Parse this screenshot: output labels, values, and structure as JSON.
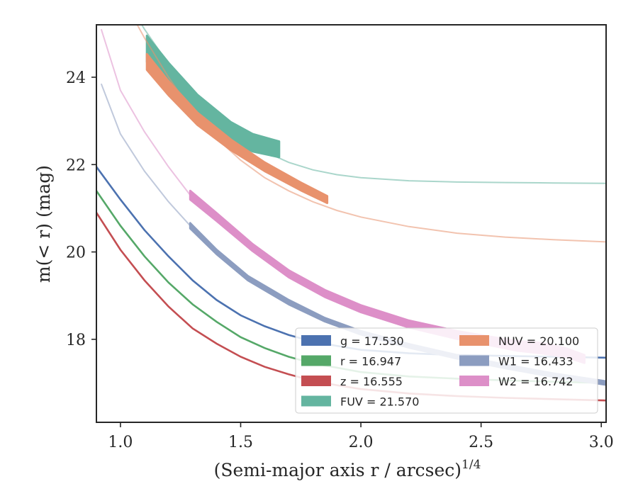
{
  "chart_data": {
    "type": "line",
    "xlabel": "(Semi-major axis r / arcsec)",
    "xlabel_sup": "1/4",
    "ylabel": "m(< r) (mag)",
    "xlim": [
      0.9,
      3.02
    ],
    "ylim": [
      25.2,
      16.1
    ],
    "y_inverted": true,
    "grid": false,
    "legend_position": "lower-right",
    "x_ticks": [
      1.0,
      1.5,
      2.0,
      2.5,
      3.0
    ],
    "x_tick_labels": [
      "1.0",
      "1.5",
      "2.0",
      "2.5",
      "3.0"
    ],
    "y_ticks": [
      18,
      20,
      22,
      24
    ],
    "y_tick_labels": [
      "18",
      "20",
      "22",
      "24"
    ],
    "series": [
      {
        "name": "g",
        "value_label": "g = 17.530",
        "color": "#4c72b0",
        "band": false,
        "x": [
          0.9,
          1.0,
          1.1,
          1.2,
          1.3,
          1.4,
          1.5,
          1.6,
          1.7,
          1.8,
          1.9,
          2.0,
          2.2,
          2.4,
          2.6,
          2.8,
          3.02
        ],
        "y": [
          21.95,
          21.2,
          20.5,
          19.9,
          19.35,
          18.9,
          18.55,
          18.3,
          18.1,
          17.95,
          17.85,
          17.76,
          17.68,
          17.64,
          17.62,
          17.6,
          17.58
        ]
      },
      {
        "name": "r",
        "value_label": "r = 16.947",
        "color": "#55a868",
        "band": false,
        "x": [
          0.9,
          1.0,
          1.1,
          1.2,
          1.3,
          1.4,
          1.5,
          1.6,
          1.7,
          1.8,
          1.9,
          2.0,
          2.2,
          2.4,
          2.6,
          2.8,
          3.02
        ],
        "y": [
          21.4,
          20.6,
          19.9,
          19.3,
          18.8,
          18.4,
          18.05,
          17.8,
          17.6,
          17.45,
          17.35,
          17.25,
          17.15,
          17.1,
          17.06,
          17.03,
          17.0
        ]
      },
      {
        "name": "z",
        "value_label": "z = 16.555",
        "color": "#c44e52",
        "band": false,
        "x": [
          0.9,
          1.0,
          1.1,
          1.2,
          1.3,
          1.4,
          1.5,
          1.6,
          1.7,
          1.8,
          1.9,
          2.0,
          2.2,
          2.4,
          2.6,
          2.8,
          3.02
        ],
        "y": [
          20.9,
          20.05,
          19.35,
          18.75,
          18.25,
          17.9,
          17.6,
          17.37,
          17.2,
          17.05,
          16.95,
          16.86,
          16.76,
          16.7,
          16.66,
          16.63,
          16.6
        ]
      },
      {
        "name": "FUV",
        "value_label": "FUV = 21.570",
        "color": "#64b5a0",
        "band": true,
        "x": [
          1.11,
          1.2,
          1.32,
          1.46,
          1.55,
          1.66
        ],
        "y": [
          24.65,
          24.05,
          23.35,
          22.75,
          22.5,
          22.35
        ],
        "err": [
          0.3,
          0.28,
          0.25,
          0.22,
          0.2,
          0.18
        ],
        "model_x": [
          0.9,
          1.0,
          1.1,
          1.2,
          1.3,
          1.4,
          1.5,
          1.6,
          1.7,
          1.8,
          1.9,
          2.0,
          2.2,
          2.4,
          2.6,
          2.8,
          3.02
        ],
        "model_y": [
          26.8,
          26.0,
          25.1,
          24.3,
          23.6,
          23.05,
          22.6,
          22.3,
          22.05,
          21.88,
          21.77,
          21.7,
          21.63,
          21.6,
          21.59,
          21.58,
          21.57
        ]
      },
      {
        "name": "NUV",
        "value_label": "NUV = 20.100",
        "color": "#e8926d",
        "band": true,
        "x": [
          1.11,
          1.2,
          1.32,
          1.46,
          1.6,
          1.75,
          1.86
        ],
        "y": [
          24.35,
          23.75,
          23.05,
          22.45,
          21.95,
          21.5,
          21.2
        ],
        "err": [
          0.18,
          0.16,
          0.14,
          0.12,
          0.1,
          0.09,
          0.08
        ],
        "model_x": [
          0.9,
          1.0,
          1.1,
          1.2,
          1.3,
          1.4,
          1.5,
          1.6,
          1.7,
          1.8,
          1.9,
          2.0,
          2.2,
          2.4,
          2.6,
          2.8,
          3.02
        ],
        "model_y": [
          26.8,
          25.9,
          24.9,
          24.0,
          23.2,
          22.6,
          22.1,
          21.7,
          21.4,
          21.15,
          20.95,
          20.8,
          20.58,
          20.43,
          20.34,
          20.28,
          20.23
        ]
      },
      {
        "name": "W1",
        "value_label": "W1 = 16.433",
        "color": "#8c9dc0",
        "band": true,
        "x": [
          1.29,
          1.4,
          1.53,
          1.7,
          1.85,
          2.0,
          2.2,
          2.4,
          2.6,
          2.8,
          3.02
        ],
        "y": [
          20.6,
          20.0,
          19.4,
          18.85,
          18.45,
          18.15,
          17.85,
          17.6,
          17.38,
          17.18,
          17.0
        ],
        "err": [
          0.06,
          0.05,
          0.05,
          0.05,
          0.04,
          0.04,
          0.04,
          0.04,
          0.04,
          0.04,
          0.04
        ],
        "model_x": [
          0.92,
          1.0,
          1.1,
          1.2,
          1.29
        ],
        "model_y": [
          23.85,
          22.7,
          21.85,
          21.15,
          20.6
        ]
      },
      {
        "name": "W2",
        "value_label": "W2 = 16.742",
        "color": "#dd8fc8",
        "band": true,
        "x": [
          1.29,
          1.4,
          1.55,
          1.7,
          1.85,
          2.0,
          2.2,
          2.4,
          2.55,
          2.65,
          2.75,
          2.85,
          2.93
        ],
        "y": [
          21.3,
          20.8,
          20.1,
          19.5,
          19.05,
          18.7,
          18.35,
          18.1,
          17.95,
          17.85,
          17.8,
          17.7,
          17.55
        ],
        "err": [
          0.1,
          0.09,
          0.08,
          0.08,
          0.08,
          0.08,
          0.08,
          0.09,
          0.1,
          0.11,
          0.12,
          0.1,
          0.09
        ],
        "model_x": [
          0.92,
          1.0,
          1.1,
          1.2,
          1.29
        ],
        "model_y": [
          25.1,
          23.7,
          22.75,
          21.95,
          21.3
        ]
      }
    ]
  }
}
